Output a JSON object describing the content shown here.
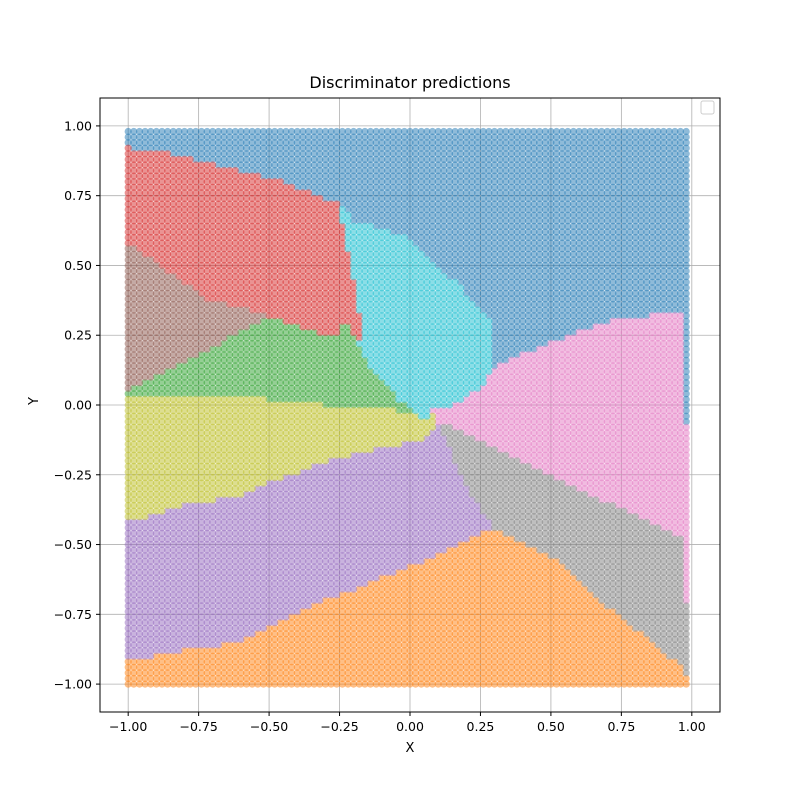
{
  "chart_data": {
    "type": "scatter",
    "title": "Discriminator predictions",
    "xlabel": "X",
    "ylabel": "Y",
    "xlim": [
      -1.1,
      1.1
    ],
    "ylim": [
      -1.1,
      1.1
    ],
    "xticks": [
      -1.0,
      -0.75,
      -0.5,
      -0.25,
      0.0,
      0.25,
      0.5,
      0.75,
      1.0
    ],
    "xtick_labels": [
      "−1.00",
      "−0.75",
      "−0.50",
      "−0.25",
      "0.00",
      "0.25",
      "0.50",
      "0.75",
      "1.00"
    ],
    "yticks": [
      -1.0,
      -0.75,
      -0.5,
      -0.25,
      0.0,
      0.25,
      0.5,
      0.75,
      1.0
    ],
    "ytick_labels": [
      "−1.00",
      "−0.75",
      "−0.50",
      "−0.25",
      "0.00",
      "0.25",
      "0.50",
      "0.75",
      "1.00"
    ],
    "grid": true,
    "legend": {
      "placement": "top-right",
      "entries": []
    },
    "grid_points": {
      "x_min": -1.0,
      "x_max": 0.98,
      "y_min": -1.0,
      "y_max": 0.98,
      "step": 0.02
    },
    "point_alpha": 0.5,
    "classes": [
      {
        "id": 0,
        "color": "#1f77b4"
      },
      {
        "id": 1,
        "color": "#ff7f0e"
      },
      {
        "id": 2,
        "color": "#2ca02c"
      },
      {
        "id": 3,
        "color": "#d62728"
      },
      {
        "id": 4,
        "color": "#9467bd"
      },
      {
        "id": 5,
        "color": "#8c564b"
      },
      {
        "id": 6,
        "color": "#e377c2"
      },
      {
        "id": 7,
        "color": "#7f7f7f"
      },
      {
        "id": 8,
        "color": "#bcbd22"
      },
      {
        "id": 9,
        "color": "#17becf"
      }
    ],
    "regions": [
      {
        "class_id": 0,
        "polygon": [
          [
            -1.0,
            0.98
          ],
          [
            0.98,
            0.98
          ],
          [
            0.98,
            0.34
          ],
          [
            0.7,
            0.3
          ],
          [
            0.5,
            0.22
          ],
          [
            0.3,
            0.14
          ],
          [
            0.3,
            0.3
          ],
          [
            0.15,
            0.45
          ],
          [
            0.0,
            0.6
          ],
          [
            -0.2,
            0.66
          ],
          [
            -0.25,
            0.72
          ],
          [
            -0.45,
            0.8
          ],
          [
            -0.65,
            0.85
          ],
          [
            -0.85,
            0.9
          ],
          [
            -1.0,
            0.92
          ]
        ]
      },
      {
        "class_id": 3,
        "polygon": [
          [
            -1.0,
            0.92
          ],
          [
            -0.85,
            0.9
          ],
          [
            -0.65,
            0.85
          ],
          [
            -0.45,
            0.8
          ],
          [
            -0.25,
            0.72
          ],
          [
            -0.23,
            0.6
          ],
          [
            -0.2,
            0.45
          ],
          [
            -0.23,
            0.3
          ],
          [
            -0.27,
            0.24
          ],
          [
            -0.5,
            0.32
          ],
          [
            -0.72,
            0.38
          ],
          [
            -1.0,
            0.58
          ]
        ]
      },
      {
        "class_id": 9,
        "polygon": [
          [
            -0.25,
            0.72
          ],
          [
            -0.2,
            0.66
          ],
          [
            0.0,
            0.6
          ],
          [
            0.15,
            0.45
          ],
          [
            0.3,
            0.3
          ],
          [
            0.3,
            0.14
          ],
          [
            0.25,
            0.06
          ],
          [
            0.15,
            0.0
          ],
          [
            0.05,
            0.0
          ],
          [
            -0.05,
            0.05
          ],
          [
            -0.15,
            0.15
          ],
          [
            -0.2,
            0.45
          ],
          [
            -0.23,
            0.6
          ]
        ]
      },
      {
        "class_id": 5,
        "polygon": [
          [
            -1.0,
            0.58
          ],
          [
            -0.72,
            0.38
          ],
          [
            -0.5,
            0.32
          ],
          [
            -0.75,
            0.18
          ],
          [
            -1.0,
            0.06
          ]
        ]
      },
      {
        "class_id": 2,
        "polygon": [
          [
            -1.0,
            0.06
          ],
          [
            -0.75,
            0.18
          ],
          [
            -0.5,
            0.32
          ],
          [
            -0.27,
            0.24
          ],
          [
            -0.23,
            0.3
          ],
          [
            -0.15,
            0.15
          ],
          [
            -0.05,
            0.05
          ],
          [
            -0.05,
            -0.02
          ],
          [
            -0.3,
            0.0
          ],
          [
            -0.7,
            0.04
          ],
          [
            -1.0,
            0.04
          ]
        ]
      },
      {
        "class_id": 8,
        "polygon": [
          [
            -1.0,
            0.04
          ],
          [
            -0.7,
            0.04
          ],
          [
            -0.3,
            0.0
          ],
          [
            -0.05,
            -0.02
          ],
          [
            0.1,
            -0.06
          ],
          [
            0.05,
            -0.12
          ],
          [
            -0.3,
            -0.2
          ],
          [
            -0.6,
            -0.32
          ],
          [
            -0.8,
            -0.36
          ],
          [
            -1.0,
            -0.42
          ]
        ]
      },
      {
        "class_id": 6,
        "polygon": [
          [
            0.98,
            0.34
          ],
          [
            0.7,
            0.3
          ],
          [
            0.5,
            0.22
          ],
          [
            0.3,
            0.14
          ],
          [
            0.25,
            0.06
          ],
          [
            0.15,
            0.0
          ],
          [
            0.05,
            0.0
          ],
          [
            0.1,
            -0.06
          ],
          [
            0.4,
            -0.2
          ],
          [
            0.7,
            -0.35
          ],
          [
            0.98,
            -0.48
          ]
        ]
      },
      {
        "class_id": 7,
        "polygon": [
          [
            0.1,
            -0.06
          ],
          [
            0.4,
            -0.2
          ],
          [
            0.7,
            -0.35
          ],
          [
            0.98,
            -0.48
          ],
          [
            0.98,
            -0.95
          ],
          [
            0.7,
            -0.72
          ],
          [
            0.5,
            -0.54
          ],
          [
            0.3,
            -0.44
          ],
          [
            0.2,
            -0.3
          ]
        ]
      },
      {
        "class_id": 4,
        "polygon": [
          [
            -1.0,
            -0.42
          ],
          [
            -0.8,
            -0.36
          ],
          [
            -0.6,
            -0.32
          ],
          [
            -0.3,
            -0.2
          ],
          [
            0.05,
            -0.12
          ],
          [
            0.1,
            -0.06
          ],
          [
            0.2,
            -0.3
          ],
          [
            0.3,
            -0.44
          ],
          [
            0.0,
            -0.58
          ],
          [
            -0.35,
            -0.72
          ],
          [
            -0.6,
            -0.85
          ],
          [
            -0.8,
            -0.88
          ],
          [
            -1.0,
            -0.92
          ]
        ]
      },
      {
        "class_id": 1,
        "polygon": [
          [
            -1.0,
            -0.92
          ],
          [
            -0.8,
            -0.88
          ],
          [
            -0.6,
            -0.85
          ],
          [
            -0.35,
            -0.72
          ],
          [
            0.0,
            -0.58
          ],
          [
            0.3,
            -0.44
          ],
          [
            0.5,
            -0.54
          ],
          [
            0.7,
            -0.72
          ],
          [
            0.98,
            -0.95
          ],
          [
            0.98,
            -1.0
          ],
          [
            -1.0,
            -1.0
          ]
        ]
      }
    ]
  }
}
